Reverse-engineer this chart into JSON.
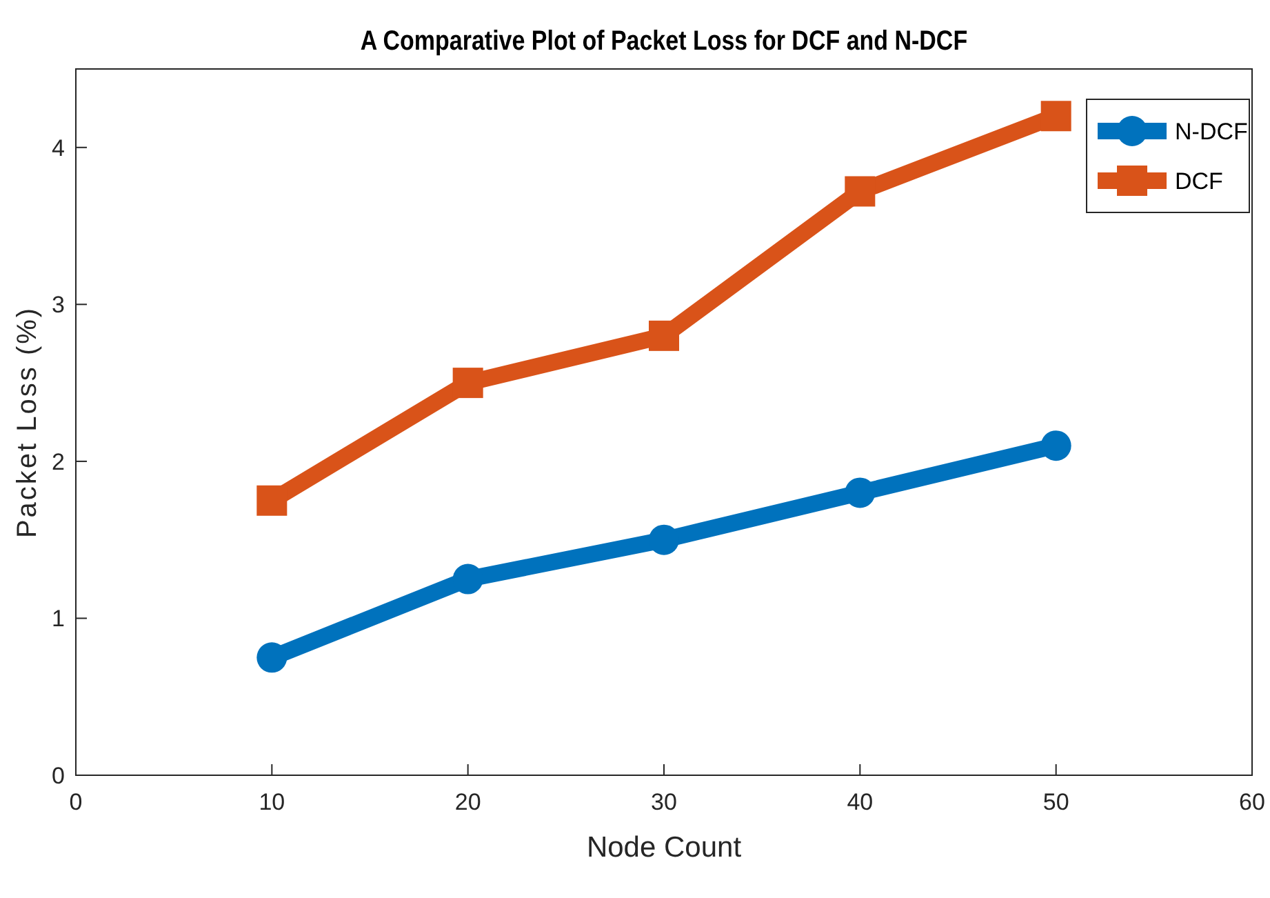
{
  "chart_data": {
    "type": "line",
    "title": "A Comparative Plot of Packet Loss for DCF and N-DCF",
    "xlabel": "Node Count",
    "ylabel": "Packet Loss (%)",
    "x": [
      10,
      20,
      30,
      40,
      50
    ],
    "series": [
      {
        "name": "N-DCF",
        "color": "#0072bd",
        "marker": "circle",
        "values": [
          0.75,
          1.25,
          1.5,
          1.8,
          2.1
        ]
      },
      {
        "name": "DCF",
        "color": "#d95319",
        "marker": "square",
        "values": [
          1.75,
          2.5,
          2.8,
          3.72,
          4.2
        ]
      }
    ],
    "xlim": [
      0,
      60
    ],
    "xticks": [
      0,
      10,
      20,
      30,
      40,
      50,
      60
    ],
    "ylim": [
      0,
      4.5
    ],
    "yticks": [
      0,
      1,
      2,
      3,
      4
    ],
    "grid": false,
    "legend": "top right",
    "line_style": "solid"
  }
}
